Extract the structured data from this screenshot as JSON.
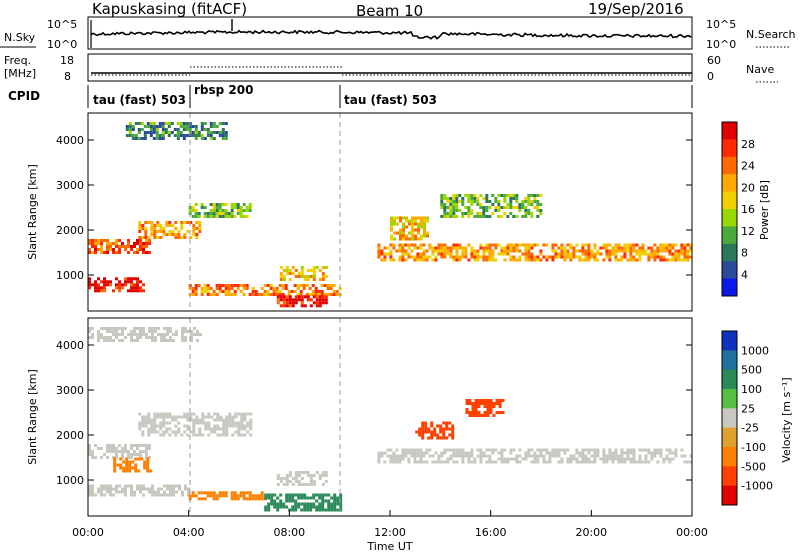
{
  "header": {
    "station": "Kapuskasing (fitACF)",
    "beam": "Beam 10",
    "date": "19/Sep/2016"
  },
  "panels": {
    "noise": {
      "left_label": "N.Sky",
      "left_ticks": [
        "10^5",
        "10^0"
      ],
      "right_ticks": [
        "10^5",
        "10^0"
      ],
      "right_label": "N.Search"
    },
    "freq": {
      "left_label_1": "Freq.",
      "left_label_2": "[MHz]",
      "left_ticks": [
        "18",
        "8"
      ],
      "right_ticks": [
        "60",
        "0"
      ],
      "right_label": "Nave"
    },
    "cpid": {
      "label": "CPID",
      "modes": [
        "tau (fast) 503",
        "rbsp 200",
        "tau (fast) 503"
      ]
    }
  },
  "power_colorbar": {
    "label": "Power [dB]",
    "ticks": [
      "28",
      "24",
      "20",
      "16",
      "12",
      "8",
      "4"
    ],
    "colors": [
      "#e00000",
      "#ff2a00",
      "#ff6a00",
      "#ffaa00",
      "#f0d000",
      "#9ad600",
      "#4caa3c",
      "#2a7a5a",
      "#2a4a9a",
      "#0a18e8"
    ]
  },
  "velocity_colorbar": {
    "label": "Velocity [m s⁻¹]",
    "ticks": [
      "1000",
      "500",
      "100",
      "25",
      "-25",
      "-100",
      "-500",
      "-1000"
    ],
    "colors": [
      "#1030c0",
      "#2070a0",
      "#2a8a5a",
      "#55c040",
      "#c8c8c0",
      "#e0a030",
      "#ff8000",
      "#ff4000",
      "#e00000"
    ]
  },
  "chart_data": [
    {
      "type": "heatmap",
      "name": "power",
      "ylabel": "Slant Range [km]",
      "yticks": [
        1000,
        2000,
        3000,
        4000
      ],
      "ylim": [
        200,
        4600
      ],
      "xlim": [
        0,
        24
      ],
      "dashed_lines_hours": [
        4,
        10
      ],
      "echo_regions": [
        {
          "t0": 0.0,
          "t1": 2.2,
          "r0": 650,
          "r1": 950,
          "power": 28
        },
        {
          "t0": 0.0,
          "t1": 2.5,
          "r0": 1500,
          "r1": 1800,
          "power": 24
        },
        {
          "t0": 2.0,
          "t1": 4.5,
          "r0": 1800,
          "r1": 2200,
          "power": 20
        },
        {
          "t0": 4.0,
          "t1": 6.5,
          "r0": 2300,
          "r1": 2600,
          "power": 12
        },
        {
          "t0": 4.0,
          "t1": 10.0,
          "r0": 550,
          "r1": 800,
          "power": 22
        },
        {
          "t0": 7.5,
          "t1": 9.5,
          "r0": 300,
          "r1": 550,
          "power": 28
        },
        {
          "t0": 7.5,
          "t1": 9.5,
          "r0": 900,
          "r1": 1200,
          "power": 18
        },
        {
          "t0": 11.5,
          "t1": 24.0,
          "r0": 1350,
          "r1": 1700,
          "power": 20
        },
        {
          "t0": 12.0,
          "t1": 13.5,
          "r0": 1800,
          "r1": 2300,
          "power": 18
        },
        {
          "t0": 14.0,
          "t1": 18.0,
          "r0": 2300,
          "r1": 2800,
          "power": 12
        },
        {
          "t0": 1.5,
          "t1": 5.5,
          "r0": 4000,
          "r1": 4400,
          "power": 8
        }
      ]
    },
    {
      "type": "heatmap",
      "name": "velocity",
      "xlabel": "Time UT",
      "ylabel": "Slant Range [km]",
      "xticks": [
        "00:00",
        "04:00",
        "08:00",
        "12:00",
        "16:00",
        "20:00",
        "00:00"
      ],
      "yticks": [
        1000,
        2000,
        3000,
        4000
      ],
      "ylim": [
        200,
        4600
      ],
      "xlim": [
        0,
        24
      ],
      "dashed_lines_hours": [
        4,
        10
      ],
      "echo_regions": [
        {
          "t0": 0.0,
          "t1": 4.0,
          "r0": 650,
          "r1": 900,
          "velocity": 0
        },
        {
          "t0": 0.0,
          "t1": 2.5,
          "r0": 1500,
          "r1": 1800,
          "velocity": 0
        },
        {
          "t0": 1.0,
          "t1": 2.5,
          "r0": 1200,
          "r1": 1500,
          "velocity": -100
        },
        {
          "t0": 2.0,
          "t1": 6.5,
          "r0": 2000,
          "r1": 2500,
          "velocity": 0
        },
        {
          "t0": 4.0,
          "t1": 7.0,
          "r0": 600,
          "r1": 750,
          "velocity": -100
        },
        {
          "t0": 7.0,
          "t1": 10.0,
          "r0": 350,
          "r1": 700,
          "velocity": 100
        },
        {
          "t0": 7.5,
          "t1": 9.5,
          "r0": 900,
          "r1": 1200,
          "velocity": 0
        },
        {
          "t0": 11.5,
          "t1": 24.0,
          "r0": 1400,
          "r1": 1700,
          "velocity": 0
        },
        {
          "t0": 13.0,
          "t1": 14.5,
          "r0": 1900,
          "r1": 2300,
          "velocity": -500
        },
        {
          "t0": 15.0,
          "t1": 16.5,
          "r0": 2400,
          "r1": 2800,
          "velocity": -500
        },
        {
          "t0": 0.0,
          "t1": 4.5,
          "r0": 4100,
          "r1": 4400,
          "velocity": 0
        }
      ]
    }
  ]
}
